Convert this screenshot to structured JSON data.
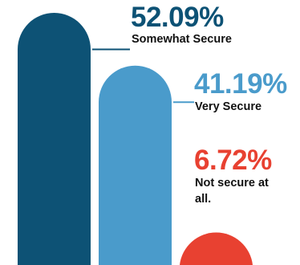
{
  "chart_data": {
    "type": "bar",
    "title": "",
    "xlabel": "",
    "ylabel": "",
    "ylim": [
      0,
      52.09
    ],
    "grid": false,
    "categories": [
      "Somewhat Secure",
      "Very Secure",
      "Not secure at all."
    ],
    "values": [
      52.09,
      41.19,
      6.72
    ],
    "value_labels": [
      "52.09%",
      "41.19%",
      "6.72%"
    ],
    "colors": [
      "#0d5275",
      "#4a9bcb",
      "#e84131"
    ]
  }
}
